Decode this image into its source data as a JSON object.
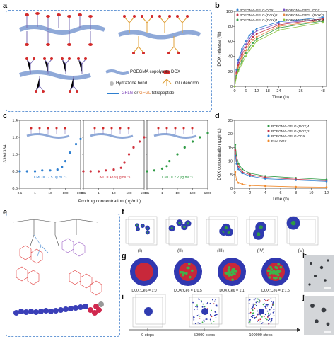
{
  "panels": {
    "a": {
      "label": "a",
      "legend": {
        "copolymer": "POEGMA copolymer",
        "dox": "DOX",
        "hydrazone": "Hydrazone bond",
        "glu": "Glu dendron",
        "tetra_a": "GFLG",
        "tetra_or": " or ",
        "tetra_b": "GFGL",
        "tetra_c": " tetrapeptide"
      }
    },
    "b": {
      "label": "b"
    },
    "c": {
      "label": "c",
      "cmc": [
        "CMC = 77.5 μg mL⁻¹",
        "CMC = 48.9 μg mL⁻¹",
        "CMC = 2.2 μg mL⁻¹"
      ],
      "xlabel": "Prodrug concentration (μg/mL)",
      "ylabel": "I339/I334"
    },
    "d": {
      "label": "d"
    },
    "e": {
      "label": "e"
    },
    "f": {
      "label": "f",
      "roman": [
        "(I)",
        "(II)",
        "(III)",
        "(IV)",
        "(V)"
      ]
    },
    "g": {
      "label": "g",
      "ratios": [
        "DOX:Ce6 = 1:0",
        "DOX:Ce6 = 1:0.5",
        "DOX:Ce6 = 1:1",
        "DOX:Ce6 = 1:1.5"
      ]
    },
    "h": {
      "label": "h"
    },
    "i": {
      "label": "i",
      "steps": [
        "0 steps",
        "50000 steps",
        "100000 steps"
      ]
    },
    "j": {
      "label": "j"
    }
  },
  "chart_data": [
    {
      "id": "b",
      "type": "line",
      "xlabel": "Time (h)",
      "ylabel": "DOX release (%)",
      "xlim": [
        0,
        50
      ],
      "ylim": [
        0,
        100
      ],
      "xticks": [
        0,
        6,
        12,
        18,
        24,
        36,
        48
      ],
      "yticks": [
        0,
        20,
        40,
        60,
        80,
        100
      ],
      "legend": [
        "POEGMA-GFLG-DOX",
        "POEGMA-GFGL-DOX",
        "POEGMA-GFLG-(DOX)2",
        "POEGMA-GFGL-(DOX)2",
        "POEGMA-GFLG-(DOX)4",
        "POEGMA-GFGL-(DOX)4"
      ],
      "series": [
        {
          "name": "POEGMA-GFLG-DOX",
          "color": "#2e7fd0",
          "x": [
            0,
            1,
            2,
            4,
            6,
            8,
            10,
            12,
            24,
            48
          ],
          "y": [
            0,
            22,
            35,
            50,
            60,
            68,
            73,
            77,
            86,
            92
          ]
        },
        {
          "name": "POEGMA-GFGL-DOX",
          "color": "#7a54c4",
          "x": [
            0,
            1,
            2,
            4,
            6,
            8,
            10,
            12,
            24,
            48
          ],
          "y": [
            0,
            20,
            32,
            46,
            56,
            64,
            70,
            74,
            84,
            90
          ]
        },
        {
          "name": "POEGMA-GFLG-(DOX)2",
          "color": "#c2334a",
          "x": [
            0,
            1,
            2,
            4,
            6,
            8,
            10,
            12,
            24,
            48
          ],
          "y": [
            0,
            18,
            28,
            42,
            52,
            60,
            66,
            70,
            82,
            90
          ]
        },
        {
          "name": "POEGMA-GFGL-(DOX)2",
          "color": "#e58a48",
          "x": [
            0,
            1,
            2,
            4,
            6,
            8,
            10,
            12,
            24,
            48
          ],
          "y": [
            0,
            16,
            26,
            38,
            48,
            56,
            62,
            66,
            80,
            88
          ]
        },
        {
          "name": "POEGMA-GFLG-(DOX)4",
          "color": "#3aa04a",
          "x": [
            0,
            1,
            2,
            4,
            6,
            8,
            10,
            12,
            24,
            48
          ],
          "y": [
            0,
            14,
            22,
            34,
            44,
            52,
            58,
            63,
            78,
            87
          ]
        },
        {
          "name": "POEGMA-GFGL-(DOX)4",
          "color": "#8cc63f",
          "x": [
            0,
            1,
            2,
            4,
            6,
            8,
            10,
            12,
            24,
            48
          ],
          "y": [
            0,
            12,
            20,
            30,
            40,
            48,
            54,
            60,
            75,
            85
          ]
        }
      ]
    },
    {
      "id": "c1",
      "type": "scatter",
      "color": "#2e7fd0",
      "ylim": [
        0.6,
        1.4
      ],
      "yticks": [
        0.6,
        0.8,
        1.0,
        1.2,
        1.4
      ],
      "x": [
        0.1,
        0.3,
        1,
        3,
        10,
        30,
        60,
        100,
        200,
        500,
        1000
      ],
      "y": [
        0.8,
        0.8,
        0.8,
        0.81,
        0.81,
        0.82,
        0.85,
        0.92,
        1.02,
        1.12,
        1.18
      ]
    },
    {
      "id": "c2",
      "type": "scatter",
      "color": "#d0323e",
      "x": [
        0.1,
        0.3,
        1,
        3,
        10,
        30,
        50,
        100,
        200,
        500,
        1000
      ],
      "y": [
        0.8,
        0.8,
        0.8,
        0.81,
        0.82,
        0.84,
        0.9,
        1.0,
        1.08,
        1.15,
        1.2
      ]
    },
    {
      "id": "c3",
      "type": "scatter",
      "color": "#2e9a44",
      "x": [
        0.1,
        0.3,
        1,
        2,
        3,
        10,
        30,
        100,
        300,
        1000
      ],
      "y": [
        0.8,
        0.81,
        0.83,
        0.86,
        0.92,
        1.0,
        1.08,
        1.15,
        1.2,
        1.25
      ]
    },
    {
      "id": "d",
      "type": "line",
      "xlabel": "Time (h)",
      "ylabel": "DOX concentration (μg/mL)",
      "xlim": [
        0,
        12
      ],
      "ylim": [
        0,
        25
      ],
      "xticks": [
        0,
        2,
        4,
        6,
        8,
        10,
        12
      ],
      "yticks": [
        0,
        5,
        10,
        15,
        20,
        25
      ],
      "legend": [
        "POEGMA-GFLG-(DOX)4",
        "POEGMA-GFLG-(DOX)2",
        "POEGMA-GFLG-DOX",
        "Free DOX"
      ],
      "series": [
        {
          "name": "POEGMA-GFLG-(DOX)4",
          "color": "#2e9a44",
          "x": [
            0.08,
            0.25,
            0.5,
            1,
            2,
            4,
            8,
            12
          ],
          "y": [
            16,
            12,
            9,
            7,
            5.5,
            4.5,
            3.8,
            3.2
          ]
        },
        {
          "name": "POEGMA-GFLG-(DOX)2",
          "color": "#c2334a",
          "x": [
            0.08,
            0.25,
            0.5,
            1,
            2,
            4,
            8,
            12
          ],
          "y": [
            14,
            10,
            8,
            6,
            5,
            4,
            3.3,
            2.8
          ]
        },
        {
          "name": "POEGMA-GFLG-DOX",
          "color": "#2e7fd0",
          "x": [
            0.08,
            0.25,
            0.5,
            1,
            2,
            4,
            8,
            12
          ],
          "y": [
            12,
            9,
            7,
            5.5,
            4.5,
            3.5,
            3,
            2.5
          ]
        },
        {
          "name": "Free DOX",
          "color": "#f08a2c",
          "x": [
            0.08,
            0.25,
            0.5,
            1,
            2,
            4,
            8,
            12
          ],
          "y": [
            6,
            3,
            2,
            1.5,
            1,
            0.8,
            0.5,
            0.4
          ]
        }
      ]
    }
  ]
}
